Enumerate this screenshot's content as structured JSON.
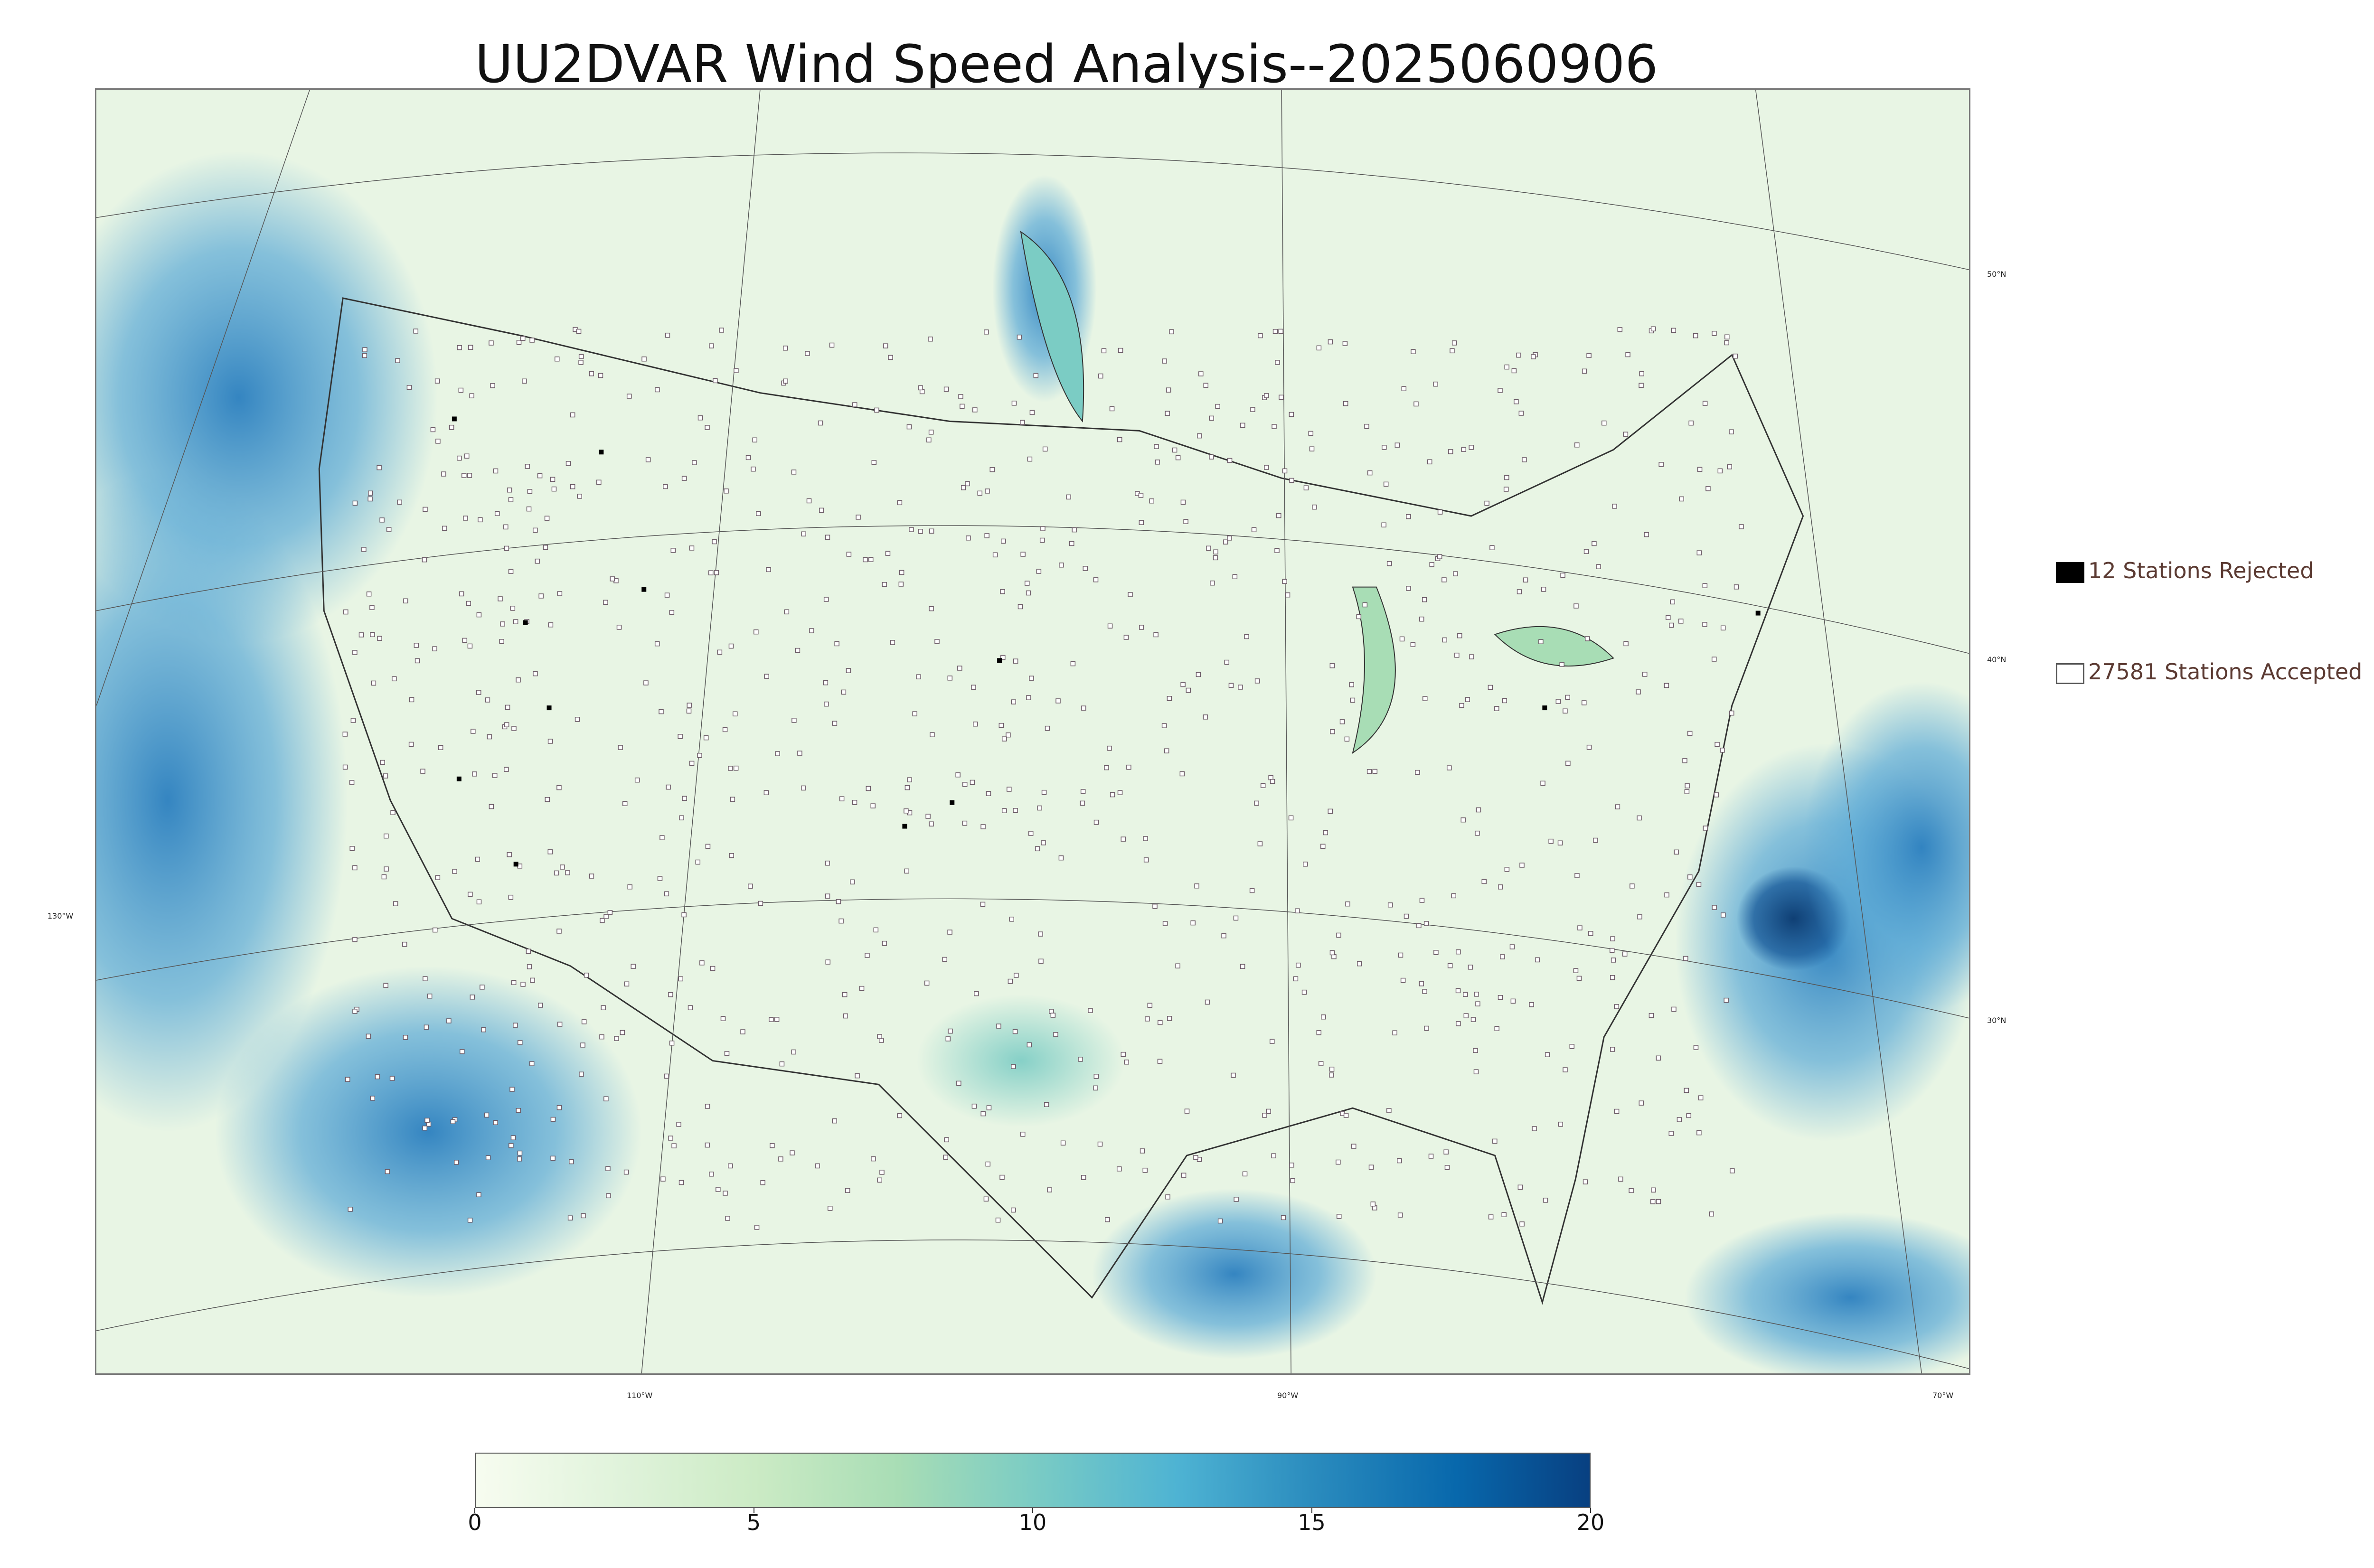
{
  "title": "UU2DVAR Wind Speed Analysis--2025060906",
  "coordinates": {
    "lat_labels": [
      "50°N",
      "40°N",
      "30°N"
    ],
    "lon_left_label": "130°W",
    "lon_bottom_labels": [
      "110°W",
      "90°W",
      "70°W"
    ]
  },
  "legend": {
    "rejected_label": "12 Stations Rejected",
    "accepted_label": "27581 Stations Accepted",
    "rejected_color": "#000000",
    "accepted_color": "#ffffff"
  },
  "colorbar": {
    "min": 0,
    "max": 20,
    "ticks": [
      "0",
      "5",
      "10",
      "15",
      "20"
    ],
    "colors": [
      "#f7fcf0",
      "#e0f3db",
      "#ccebc5",
      "#a8ddb5",
      "#7bccc4",
      "#4eb3d3",
      "#2b8cbe",
      "#0868ac",
      "#084081"
    ]
  },
  "colors": {
    "land": "#e6f3e0",
    "ocean_calm": "#cdeccf",
    "ocean_windy": "#5aa9d6",
    "strong_wind": "#1f5f9c",
    "border": "#333333"
  }
}
